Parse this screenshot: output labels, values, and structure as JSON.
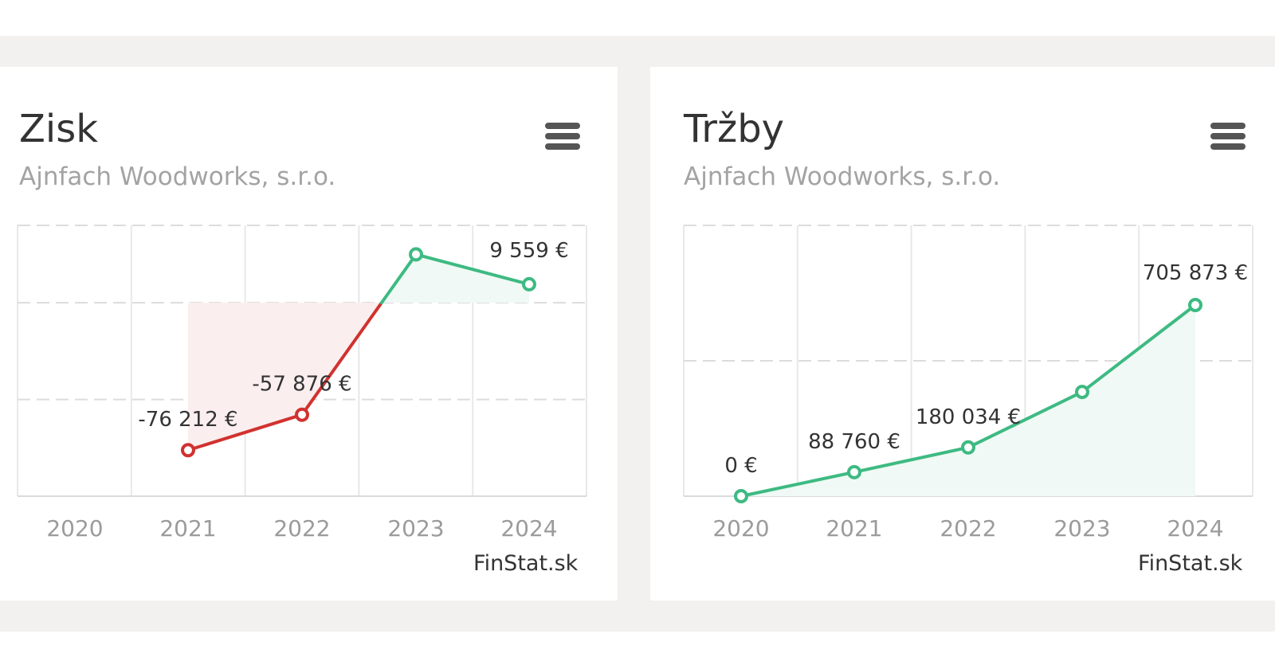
{
  "charts": [
    {
      "title": "Zisk",
      "subtitle": "Ajnfach Woodworks, s.r.o.",
      "credit": "FinStat.sk"
    },
    {
      "title": "Tržby",
      "subtitle": "Ajnfach Woodworks, s.r.o.",
      "credit": "FinStat.sk"
    }
  ],
  "colors": {
    "positive": "#3dba82",
    "negative": "#d1322f",
    "positive_fill": "#f0f9f5",
    "negative_fill": "#fbeeee",
    "grid": "#dcdcdc",
    "tick": "#9b9b9b",
    "label": "#333333"
  },
  "chart_data": [
    {
      "type": "line",
      "title": "Zisk",
      "subtitle": "Ajnfach Woodworks, s.r.o.",
      "categories": [
        "2020",
        "2021",
        "2022",
        "2023",
        "2024"
      ],
      "series": [
        {
          "values": [
            null,
            -76212,
            -57876,
            25000,
            9559
          ]
        }
      ],
      "data_labels": [
        "",
        "-76 212 €",
        "-57 876 €",
        "",
        "9 559 €"
      ],
      "ylim": [
        -100000,
        40000
      ],
      "y_gridlines": [
        -50000,
        0,
        40000
      ],
      "threshold": 0,
      "grid": true,
      "legend": "none"
    },
    {
      "type": "area",
      "title": "Tržby",
      "subtitle": "Ajnfach Woodworks, s.r.o.",
      "categories": [
        "2020",
        "2021",
        "2022",
        "2023",
        "2024"
      ],
      "series": [
        {
          "values": [
            0,
            88760,
            180034,
            385000,
            705873
          ]
        }
      ],
      "data_labels": [
        "0 €",
        "88 760 €",
        "180 034 €",
        "",
        "705 873 €"
      ],
      "ylim": [
        0,
        1000000
      ],
      "y_gridlines": [
        500000,
        1000000
      ],
      "grid": true,
      "legend": "none"
    }
  ]
}
